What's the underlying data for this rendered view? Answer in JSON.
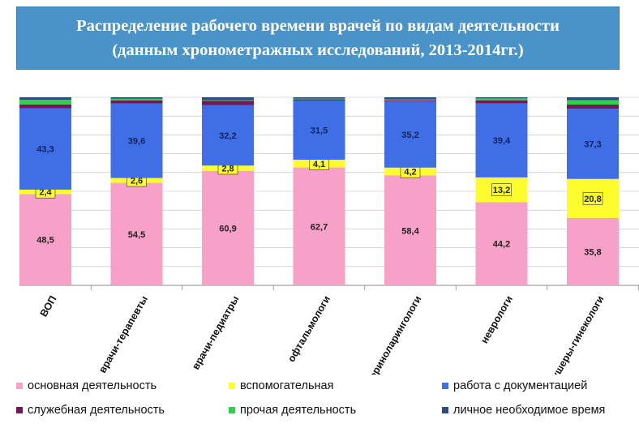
{
  "header": {
    "title_line1": "Распределение рабочего времени врачей по видам деятельности",
    "title_line2": "(данным хронометражных исследований, 2013-2014гг.)"
  },
  "chart_data": {
    "type": "bar",
    "stacked": true,
    "title": "Распределение рабочего времени врачей по видам деятельности (данным хронометражных исследований, 2013-2014гг.)",
    "ylim": [
      0,
      100
    ],
    "categories": [
      "ВОП",
      "врачи-терапевты",
      "врачи-педиатры",
      "офтальмологи",
      "оториноларингологи",
      "неврологи",
      "акушеры-гинекологи"
    ],
    "series": [
      {
        "name": "основная деятельность",
        "color": "#f7a0c8",
        "values": [
          48.5,
          54.5,
          60.9,
          62.7,
          58.4,
          44.2,
          35.8
        ]
      },
      {
        "name": "вспомогательная",
        "color": "#fdfd2e",
        "values": [
          2.4,
          2.6,
          2.8,
          4.1,
          4.2,
          13.2,
          20.8
        ]
      },
      {
        "name": "работа с документацией",
        "color": "#3f6ee6",
        "values": [
          43.3,
          39.6,
          32.2,
          31.5,
          35.2,
          39.4,
          37.3
        ]
      },
      {
        "name": "служебная деятельность",
        "color": "#74165a",
        "values": [
          2.0,
          1.6,
          2.2,
          0.6,
          0.5,
          1.6,
          2.2
        ]
      },
      {
        "name": "прочая деятельность",
        "color": "#2ed14a",
        "values": [
          2.5,
          0.9,
          0.4,
          0.4,
          0.5,
          1.0,
          2.4
        ]
      },
      {
        "name": "личное необходимое время",
        "color": "#2e4d7a",
        "values": [
          1.3,
          0.8,
          1.5,
          0.7,
          1.2,
          0.6,
          1.5
        ]
      }
    ],
    "labeled_series": [
      "основная деятельность",
      "вспомогательная",
      "работа с документацией"
    ],
    "gridlines": true
  },
  "legend": {
    "items": [
      {
        "label": "основная деятельность",
        "color": "#f7a0c8"
      },
      {
        "label": "вспомогательная",
        "color": "#fdfd2e"
      },
      {
        "label": "работа с документацией",
        "color": "#3f6ee6"
      },
      {
        "label": "служебная деятельность",
        "color": "#74165a"
      },
      {
        "label": "прочая деятельность",
        "color": "#2ed14a"
      },
      {
        "label": "личное необходимое время",
        "color": "#2e4d7a"
      }
    ]
  }
}
